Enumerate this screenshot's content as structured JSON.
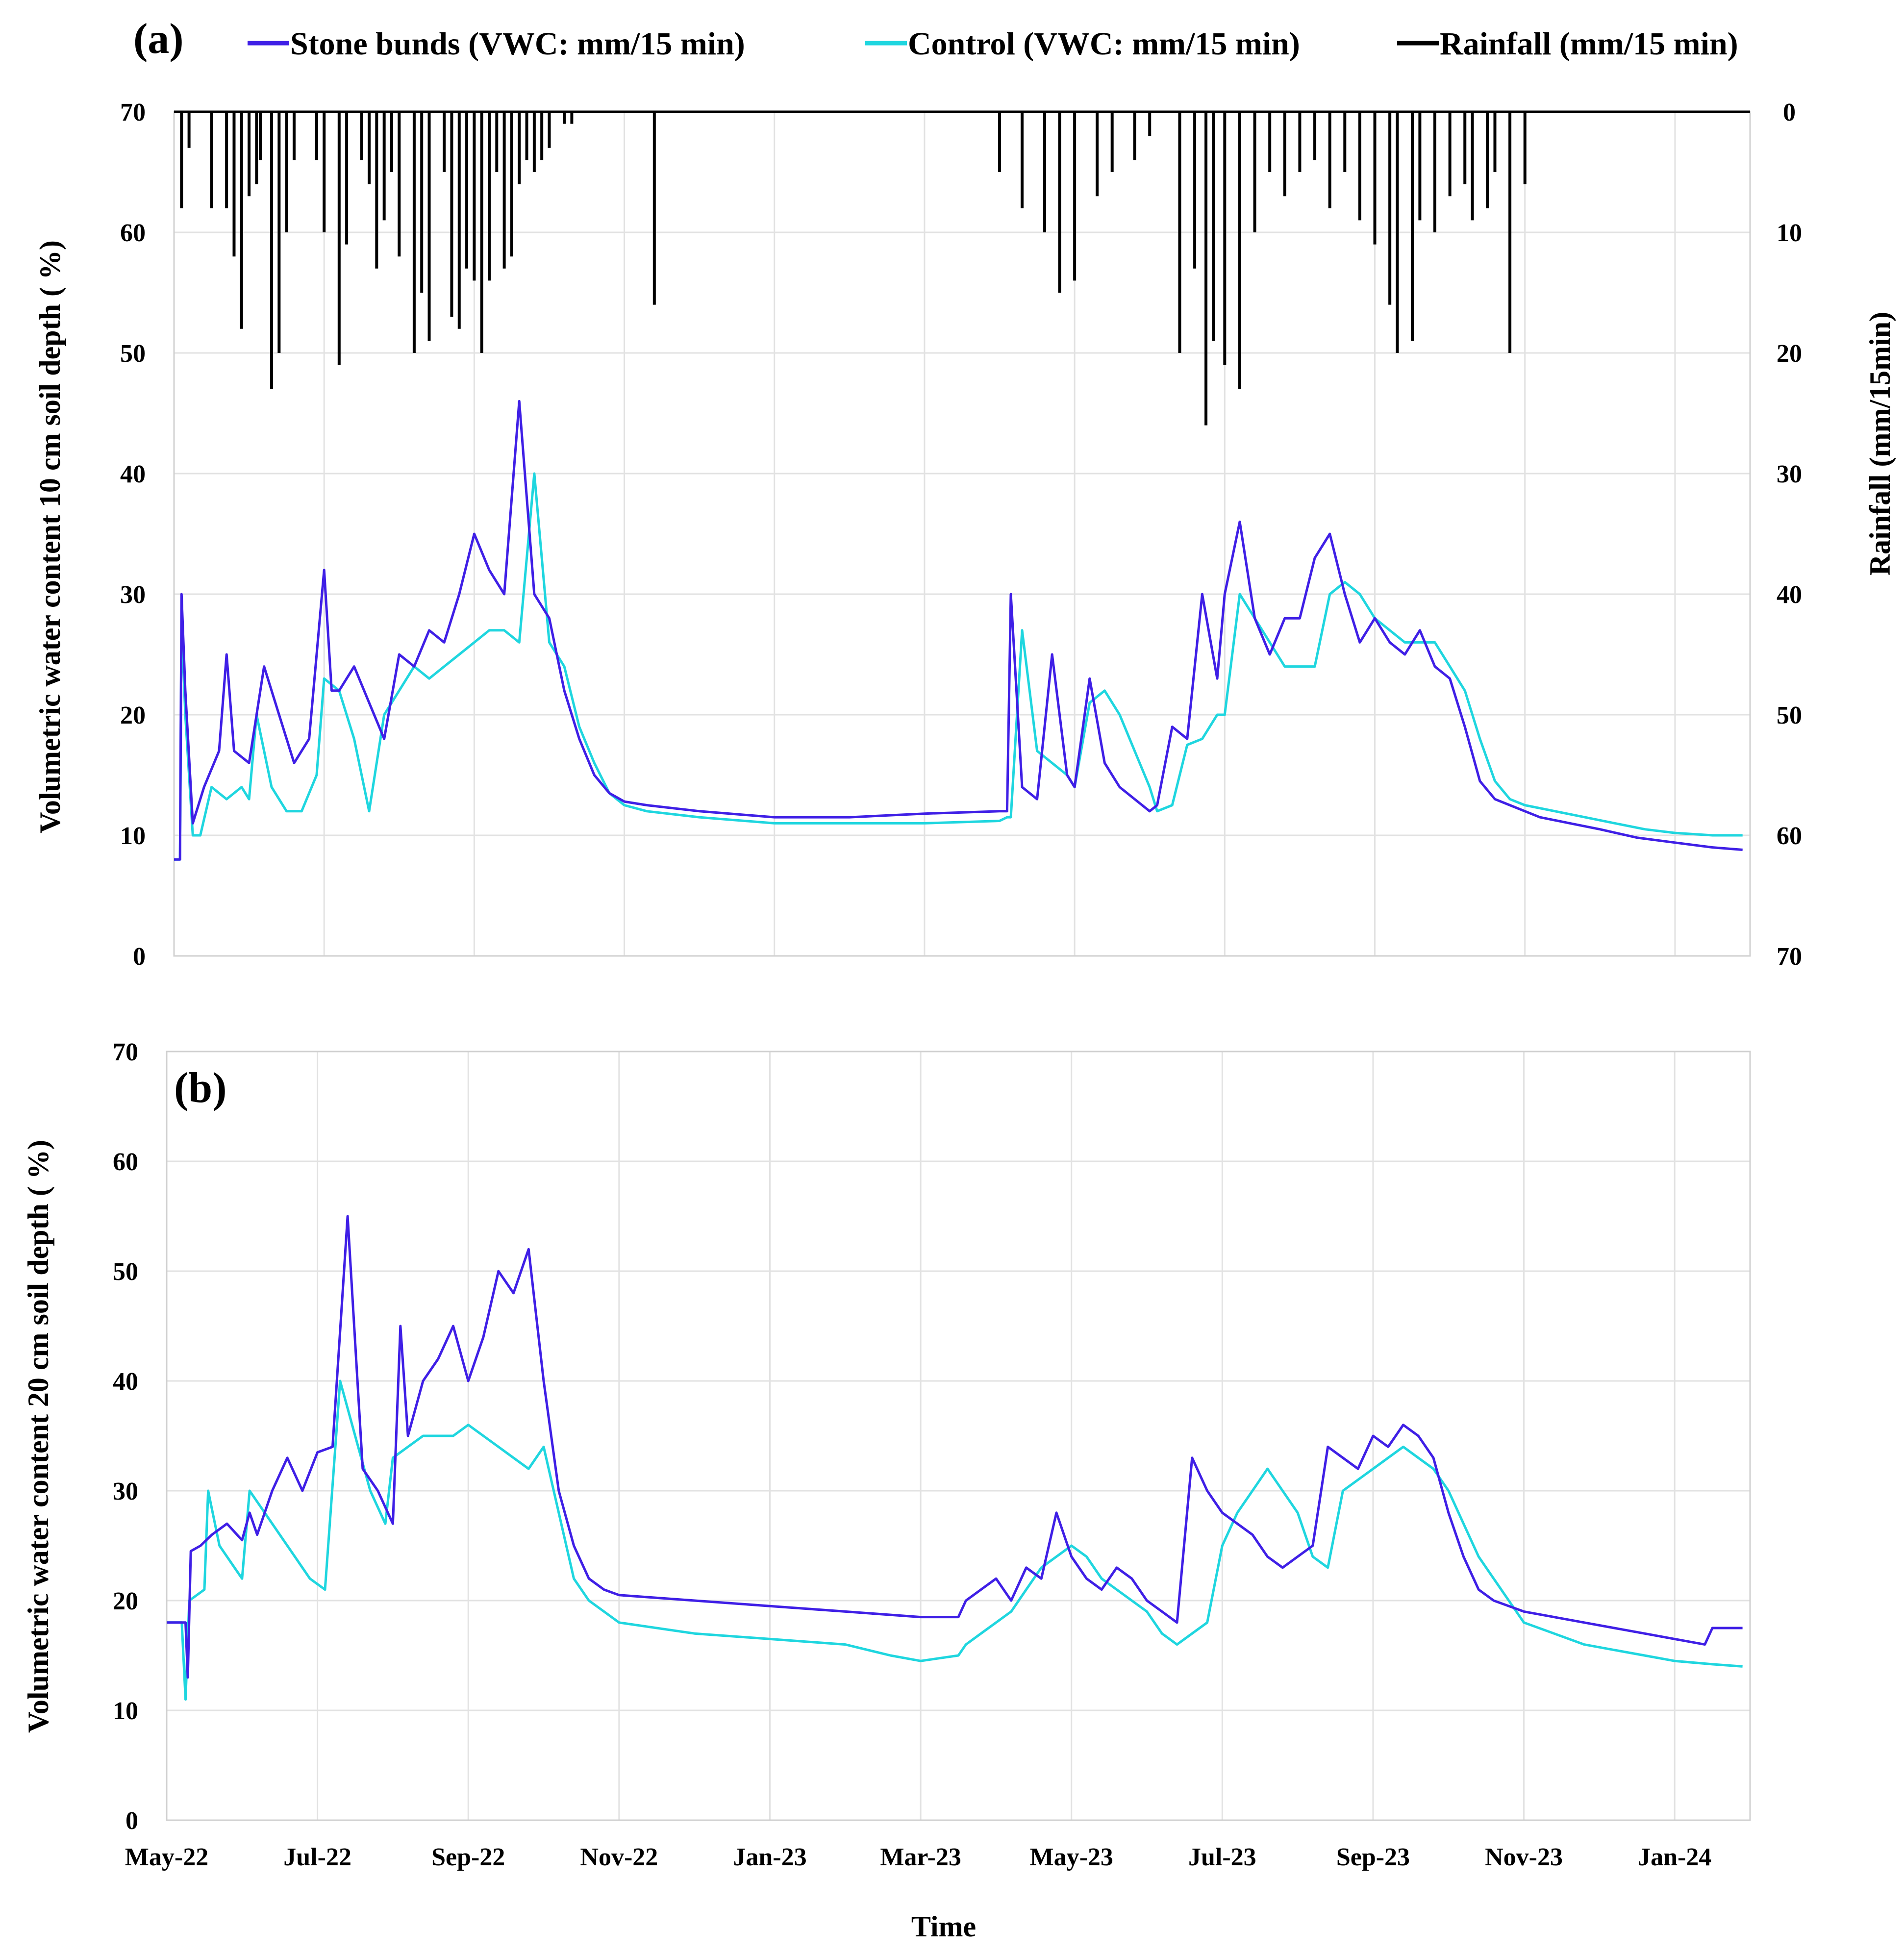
{
  "legend": [
    {
      "label": "Stone bunds (VWC: mm/15 min)",
      "color": "#3f1fe6"
    },
    {
      "label": "Control (VWC: mm/15 min)",
      "color": "#1fd6df"
    },
    {
      "label": "Rainfall (mm/15 min)",
      "color": "#000000"
    }
  ],
  "chart_data": [
    {
      "type": "line",
      "panel_label": "(a)",
      "ylabel": "Volumetric water content 10 cm soil depth ( %)",
      "y2label": "Rainfall (mm/15min)",
      "ylim": [
        0,
        70
      ],
      "y2lim": [
        70,
        0
      ],
      "yticks": [
        0,
        10,
        20,
        30,
        40,
        50,
        60,
        70
      ],
      "y2ticks": [
        0,
        10,
        20,
        30,
        40,
        50,
        60,
        70
      ],
      "xlim": [
        0,
        21
      ],
      "xticks": [
        "May-22",
        "Jul-22",
        "Sep-22",
        "Nov-22",
        "Jan-23",
        "Mar-23",
        "May-23",
        "Jul-23",
        "Sep-23",
        "Nov-23",
        "Jan-24"
      ],
      "x_unit": "months since May-22",
      "series": [
        {
          "name": "Stone bunds (VWC: mm/15 min)",
          "color": "#3f1fe6",
          "x": [
            0,
            0.08,
            0.1,
            0.15,
            0.25,
            0.3,
            0.4,
            0.6,
            0.7,
            0.8,
            1.0,
            1.2,
            1.4,
            1.6,
            1.8,
            2.0,
            2.1,
            2.2,
            2.4,
            2.6,
            2.8,
            3.0,
            3.2,
            3.4,
            3.6,
            3.8,
            4.0,
            4.2,
            4.4,
            4.6,
            4.8,
            5.0,
            5.2,
            5.4,
            5.6,
            5.8,
            6.0,
            6.3,
            7.0,
            8.0,
            9.0,
            10.0,
            11.0,
            11.1,
            11.15,
            11.3,
            11.5,
            11.7,
            11.9,
            12.0,
            12.2,
            12.4,
            12.6,
            12.8,
            13.0,
            13.1,
            13.3,
            13.5,
            13.7,
            13.9,
            14.0,
            14.2,
            14.4,
            14.6,
            14.8,
            15.0,
            15.2,
            15.4,
            15.6,
            15.8,
            16.0,
            16.2,
            16.4,
            16.6,
            16.8,
            17.0,
            17.2,
            17.4,
            17.6,
            17.8,
            18.0,
            18.2,
            18.6,
            19.0,
            19.5,
            20.0,
            20.5,
            20.9
          ],
          "y": [
            8,
            8,
            30,
            22,
            11,
            12,
            14,
            17,
            25,
            17,
            16,
            24,
            20,
            16,
            18,
            32,
            22,
            22,
            24,
            21,
            18,
            25,
            24,
            27,
            26,
            30,
            35,
            32,
            30,
            46,
            30,
            28,
            22,
            18,
            15,
            13.5,
            12.8,
            12.5,
            12,
            11.5,
            11.5,
            11.8,
            12,
            12,
            30,
            14,
            13,
            25,
            15,
            14,
            23,
            16,
            14,
            13,
            12,
            12.5,
            19,
            18,
            30,
            23,
            30,
            36,
            28,
            25,
            28,
            28,
            33,
            35,
            30,
            26,
            28,
            26,
            25,
            27,
            24,
            23,
            19,
            14.5,
            13,
            12.5,
            12,
            11.5,
            11,
            10.5,
            9.8,
            9.4,
            9.0,
            8.8
          ]
        },
        {
          "name": "Control (VWC: mm/15 min)",
          "color": "#1fd6df",
          "x": [
            0,
            0.08,
            0.1,
            0.15,
            0.25,
            0.35,
            0.5,
            0.7,
            0.9,
            1.0,
            1.1,
            1.3,
            1.5,
            1.7,
            1.9,
            2.0,
            2.2,
            2.4,
            2.6,
            2.8,
            3.0,
            3.2,
            3.4,
            3.6,
            3.8,
            4.0,
            4.2,
            4.4,
            4.6,
            4.8,
            5.0,
            5.2,
            5.4,
            5.6,
            5.8,
            6.0,
            6.3,
            7.0,
            8.0,
            9.0,
            10.0,
            11.0,
            11.1,
            11.15,
            11.3,
            11.5,
            11.7,
            11.9,
            12.0,
            12.2,
            12.4,
            12.6,
            12.8,
            13.0,
            13.1,
            13.3,
            13.5,
            13.7,
            13.9,
            14.0,
            14.2,
            14.4,
            14.6,
            14.8,
            15.0,
            15.2,
            15.4,
            15.6,
            15.8,
            16.0,
            16.2,
            16.4,
            16.6,
            16.8,
            17.0,
            17.2,
            17.4,
            17.6,
            17.8,
            18.0,
            18.4,
            18.8,
            19.2,
            19.6,
            20.0,
            20.5,
            20.9
          ],
          "y": [
            8,
            8,
            28,
            20,
            10,
            10,
            14,
            13,
            14,
            13,
            20,
            14,
            12,
            12,
            15,
            23,
            22,
            18,
            12,
            20,
            22,
            24,
            23,
            24,
            25,
            26,
            27,
            27,
            26,
            40,
            26,
            24,
            19,
            16,
            13.5,
            12.5,
            12,
            11.5,
            11,
            11,
            11,
            11.2,
            11.5,
            11.5,
            27,
            17,
            16,
            15,
            14,
            21,
            22,
            20,
            17,
            14,
            12,
            12.5,
            17.5,
            18,
            20,
            20,
            30,
            28,
            26,
            24,
            24,
            24,
            30,
            31,
            30,
            28,
            27,
            26,
            26,
            26,
            24,
            22,
            18,
            14.5,
            13,
            12.5,
            12,
            11.5,
            11,
            10.5,
            10.2,
            10,
            10
          ]
        }
      ],
      "rainfall": {
        "name": "Rainfall (mm/15 min)",
        "color": "#000000",
        "x": [
          0.1,
          0.2,
          0.5,
          0.7,
          0.8,
          0.9,
          1.0,
          1.1,
          1.15,
          1.3,
          1.4,
          1.5,
          1.6,
          1.9,
          2.0,
          2.2,
          2.3,
          2.5,
          2.6,
          2.7,
          2.8,
          2.9,
          3.0,
          3.2,
          3.3,
          3.4,
          3.6,
          3.7,
          3.8,
          3.9,
          4.0,
          4.1,
          4.2,
          4.3,
          4.4,
          4.5,
          4.6,
          4.7,
          4.8,
          4.9,
          5.0,
          5.2,
          5.3,
          6.4,
          11.0,
          11.3,
          11.6,
          11.8,
          12.0,
          12.3,
          12.5,
          12.8,
          13.0,
          13.4,
          13.6,
          13.75,
          13.85,
          14.0,
          14.2,
          14.4,
          14.6,
          14.8,
          15.0,
          15.2,
          15.4,
          15.6,
          15.8,
          16.0,
          16.2,
          16.3,
          16.5,
          16.6,
          16.8,
          17.0,
          17.2,
          17.3,
          17.5,
          17.6,
          17.8,
          18.0
        ],
        "y": [
          8,
          3,
          8,
          8,
          12,
          18,
          7,
          6,
          4,
          23,
          20,
          10,
          4,
          4,
          10,
          21,
          11,
          4,
          6,
          13,
          9,
          5,
          12,
          20,
          15,
          19,
          5,
          17,
          18,
          13,
          14,
          20,
          14,
          5,
          13,
          12,
          6,
          4,
          5,
          4,
          3,
          1,
          1,
          16,
          5,
          8,
          10,
          15,
          14,
          7,
          5,
          4,
          2,
          20,
          13,
          26,
          19,
          21,
          23,
          10,
          5,
          7,
          5,
          4,
          8,
          5,
          9,
          11,
          16,
          20,
          19,
          9,
          10,
          7,
          6,
          9,
          8,
          5,
          20,
          6
        ]
      }
    },
    {
      "type": "line",
      "panel_label": "(b)",
      "ylabel": "Volumetric water content 20 cm soil depth ( %)",
      "ylim": [
        0,
        70
      ],
      "yticks": [
        0,
        10,
        20,
        30,
        40,
        50,
        60,
        70
      ],
      "xlim": [
        0,
        21
      ],
      "xlabel": "Time",
      "xticks": [
        "May-22",
        "Jul-22",
        "Sep-22",
        "Nov-22",
        "Jan-23",
        "Mar-23",
        "May-23",
        "Jul-23",
        "Sep-23",
        "Nov-23",
        "Jan-24"
      ],
      "x_unit": "months since May-22",
      "series": [
        {
          "name": "Stone bunds (VWC: mm/15 min)",
          "color": "#3f1fe6",
          "x": [
            0,
            0.25,
            0.28,
            0.32,
            0.45,
            0.6,
            0.8,
            1.0,
            1.1,
            1.2,
            1.4,
            1.6,
            1.8,
            2.0,
            2.2,
            2.4,
            2.6,
            2.8,
            3.0,
            3.1,
            3.2,
            3.4,
            3.6,
            3.8,
            4.0,
            4.2,
            4.4,
            4.6,
            4.8,
            5.0,
            5.2,
            5.4,
            5.6,
            5.8,
            6.0,
            7.0,
            8.0,
            9.0,
            10.0,
            10.5,
            10.6,
            10.8,
            11.0,
            11.2,
            11.4,
            11.6,
            11.8,
            12.0,
            12.2,
            12.4,
            12.6,
            12.8,
            13.0,
            13.2,
            13.4,
            13.6,
            13.8,
            14.0,
            14.2,
            14.4,
            14.6,
            14.8,
            15.0,
            15.2,
            15.4,
            15.6,
            15.8,
            16.0,
            16.2,
            16.4,
            16.6,
            16.8,
            17.0,
            17.2,
            17.4,
            17.6,
            17.8,
            18.0,
            18.4,
            18.8,
            19.2,
            19.6,
            20.0,
            20.4,
            20.5,
            20.9
          ],
          "y": [
            18,
            18,
            13,
            24.5,
            25,
            26,
            27,
            25.5,
            28,
            26,
            30,
            33,
            30,
            33.5,
            34,
            55,
            32,
            30,
            27,
            45,
            35,
            40,
            42,
            45,
            40,
            44,
            50,
            48,
            52,
            40,
            30,
            25,
            22,
            21,
            20.5,
            20,
            19.5,
            19,
            18.5,
            18.5,
            20,
            21,
            22,
            20,
            23,
            22,
            28,
            24,
            22,
            21,
            23,
            22,
            20,
            19,
            18,
            33,
            30,
            28,
            27,
            26,
            24,
            23,
            24,
            25,
            34,
            33,
            32,
            35,
            34,
            36,
            35,
            33,
            28,
            24,
            21,
            20,
            19.5,
            19,
            18.5,
            18,
            17.5,
            17,
            16.5,
            16,
            17.5,
            17.5
          ]
        },
        {
          "name": "Control (VWC: mm/15 min)",
          "color": "#1fd6df",
          "x": [
            0,
            0.2,
            0.25,
            0.3,
            0.5,
            0.55,
            0.7,
            0.9,
            1.0,
            1.1,
            1.3,
            1.5,
            1.7,
            1.9,
            2.1,
            2.3,
            2.5,
            2.7,
            2.9,
            3.0,
            3.2,
            3.4,
            3.6,
            3.8,
            4.0,
            4.2,
            4.4,
            4.6,
            4.8,
            5.0,
            5.2,
            5.4,
            5.6,
            5.8,
            6.0,
            7.0,
            8.0,
            9.0,
            9.6,
            10.0,
            10.5,
            10.6,
            10.8,
            11.0,
            11.2,
            11.4,
            11.6,
            11.8,
            12.0,
            12.2,
            12.4,
            12.6,
            12.8,
            13.0,
            13.2,
            13.4,
            13.6,
            13.8,
            14.0,
            14.2,
            14.4,
            14.6,
            14.8,
            15.0,
            15.2,
            15.4,
            15.6,
            15.8,
            16.0,
            16.2,
            16.4,
            16.6,
            16.8,
            17.0,
            17.2,
            17.4,
            17.6,
            17.8,
            18.0,
            18.4,
            18.8,
            19.2,
            19.6,
            20.0,
            20.5,
            20.9
          ],
          "y": [
            18,
            18,
            11,
            20,
            21,
            30,
            25,
            23,
            22,
            30,
            28,
            26,
            24,
            22,
            21,
            40,
            35,
            30,
            27,
            33,
            34,
            35,
            35,
            35,
            36,
            35,
            34,
            33,
            32,
            34,
            28,
            22,
            20,
            19,
            18,
            17,
            16.5,
            16,
            15,
            14.5,
            15,
            16,
            17,
            18,
            19,
            21,
            23,
            24,
            25,
            24,
            22,
            21,
            20,
            19,
            17,
            16,
            17,
            18,
            25,
            28,
            30,
            32,
            30,
            28,
            24,
            23,
            30,
            31,
            32,
            33,
            34,
            33,
            32,
            30,
            27,
            24,
            22,
            20,
            18,
            17,
            16,
            15.5,
            15,
            14.5,
            14.2,
            14
          ]
        }
      ]
    }
  ]
}
